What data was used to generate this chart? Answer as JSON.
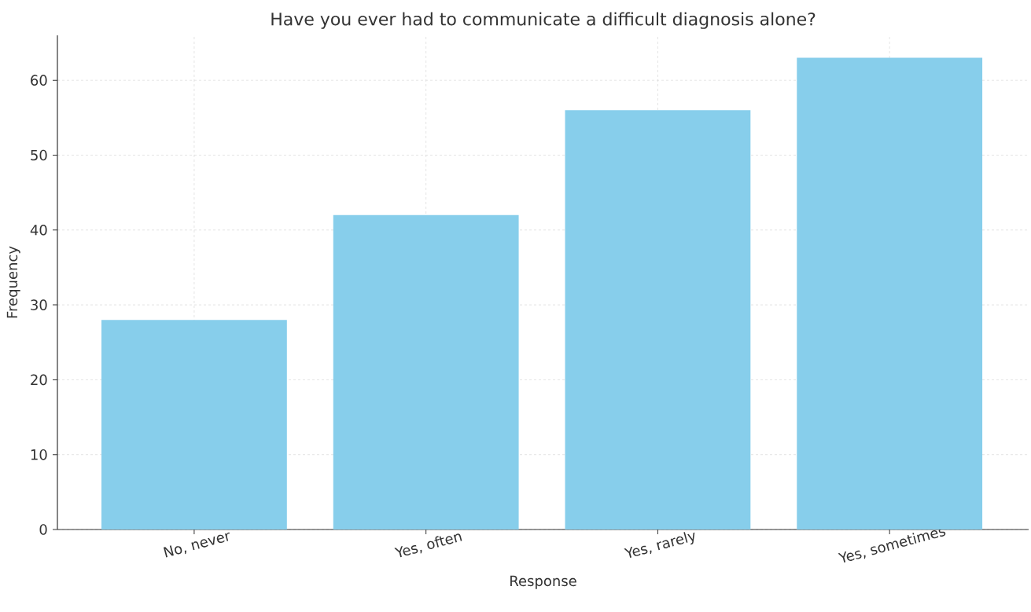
{
  "chart_data": {
    "type": "bar",
    "title": "Have you ever had to communicate a difficult diagnosis alone?",
    "xlabel": "Response",
    "ylabel": "Frequency",
    "categories": [
      "No, never",
      "Yes, often",
      "Yes, rarely",
      "Yes, sometimes"
    ],
    "values": [
      28,
      42,
      56,
      63
    ],
    "color": "#87ceeb",
    "ylim": [
      0,
      66
    ],
    "yticks": [
      0,
      10,
      20,
      30,
      40,
      50,
      60
    ],
    "grid": true
  }
}
